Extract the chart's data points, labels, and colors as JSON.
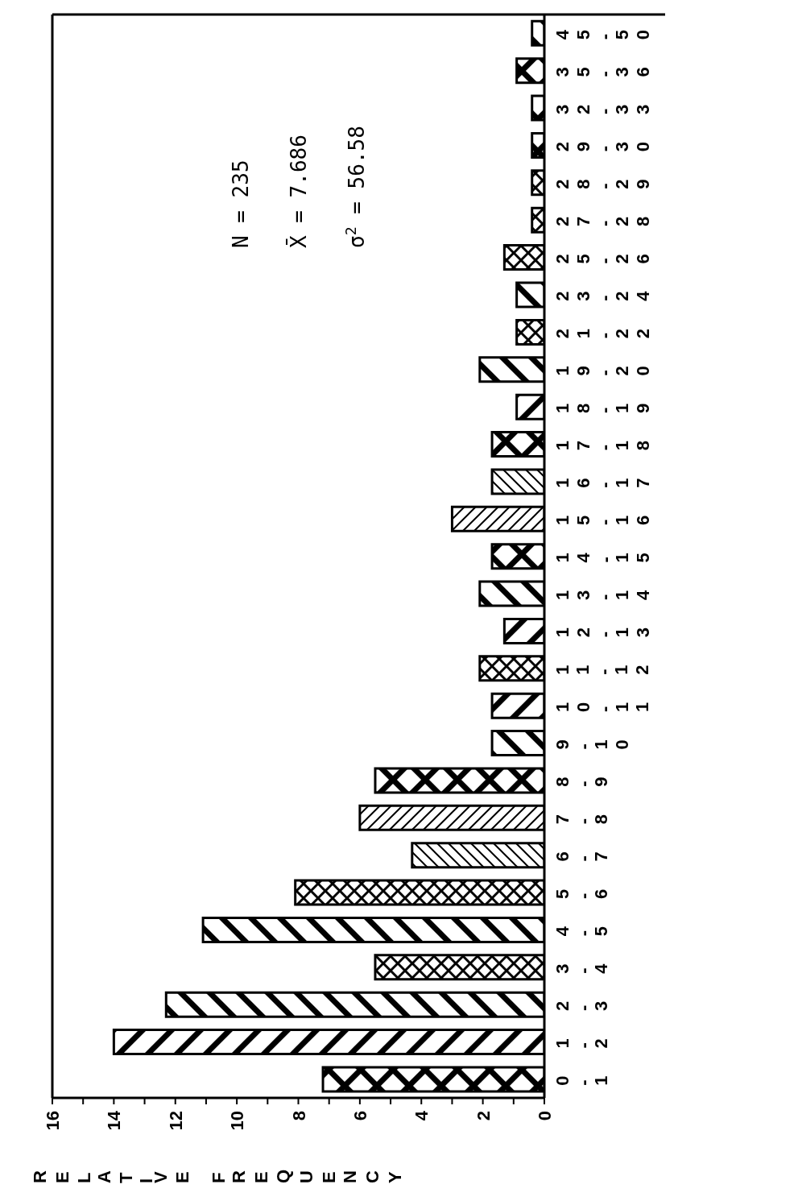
{
  "chart_data": {
    "type": "bar",
    "orientation": "horizontal",
    "categories": [
      "45-50",
      "35-36",
      "32-33",
      "29-30",
      "28-29",
      "27-28",
      "25-26",
      "23-24",
      "21-22",
      "19-20",
      "18-19",
      "17-18",
      "16-17",
      "15-16",
      "14-15",
      "13-14",
      "12-13",
      "11-12",
      "10-11",
      "9-10",
      "8-9",
      "7-8",
      "6-7",
      "5-6",
      "4-5",
      "3-4",
      "2-3",
      "1-2",
      "0-1"
    ],
    "values": [
      0.4,
      0.9,
      0.4,
      0.4,
      0.4,
      0.4,
      1.3,
      0.9,
      0.9,
      2.1,
      0.9,
      1.7,
      1.7,
      3.0,
      1.7,
      2.1,
      1.3,
      2.1,
      1.7,
      1.7,
      5.5,
      6.0,
      4.3,
      8.1,
      11.1,
      5.5,
      12.3,
      14.0,
      7.2
    ],
    "color": "#000000",
    "xlabel": "RELATIVE FREQUENCY",
    "xlim": [
      16,
      0
    ],
    "xticks": [
      16,
      {
        "value": 15,
        "label": null
      },
      14,
      {
        "value": 13,
        "label": null
      },
      12,
      {
        "value": 11,
        "label": null
      },
      10,
      {
        "value": 9,
        "label": null
      },
      8,
      {
        "value": 7,
        "label": null
      },
      6,
      {
        "value": 5,
        "label": null
      },
      4,
      {
        "value": 3,
        "label": null
      },
      2,
      {
        "value": 1,
        "label": null
      },
      0
    ],
    "annotations": [
      "N = 235",
      "X̄ = 7.686",
      "σ$^{2}$ = 56.58"
    ]
  }
}
